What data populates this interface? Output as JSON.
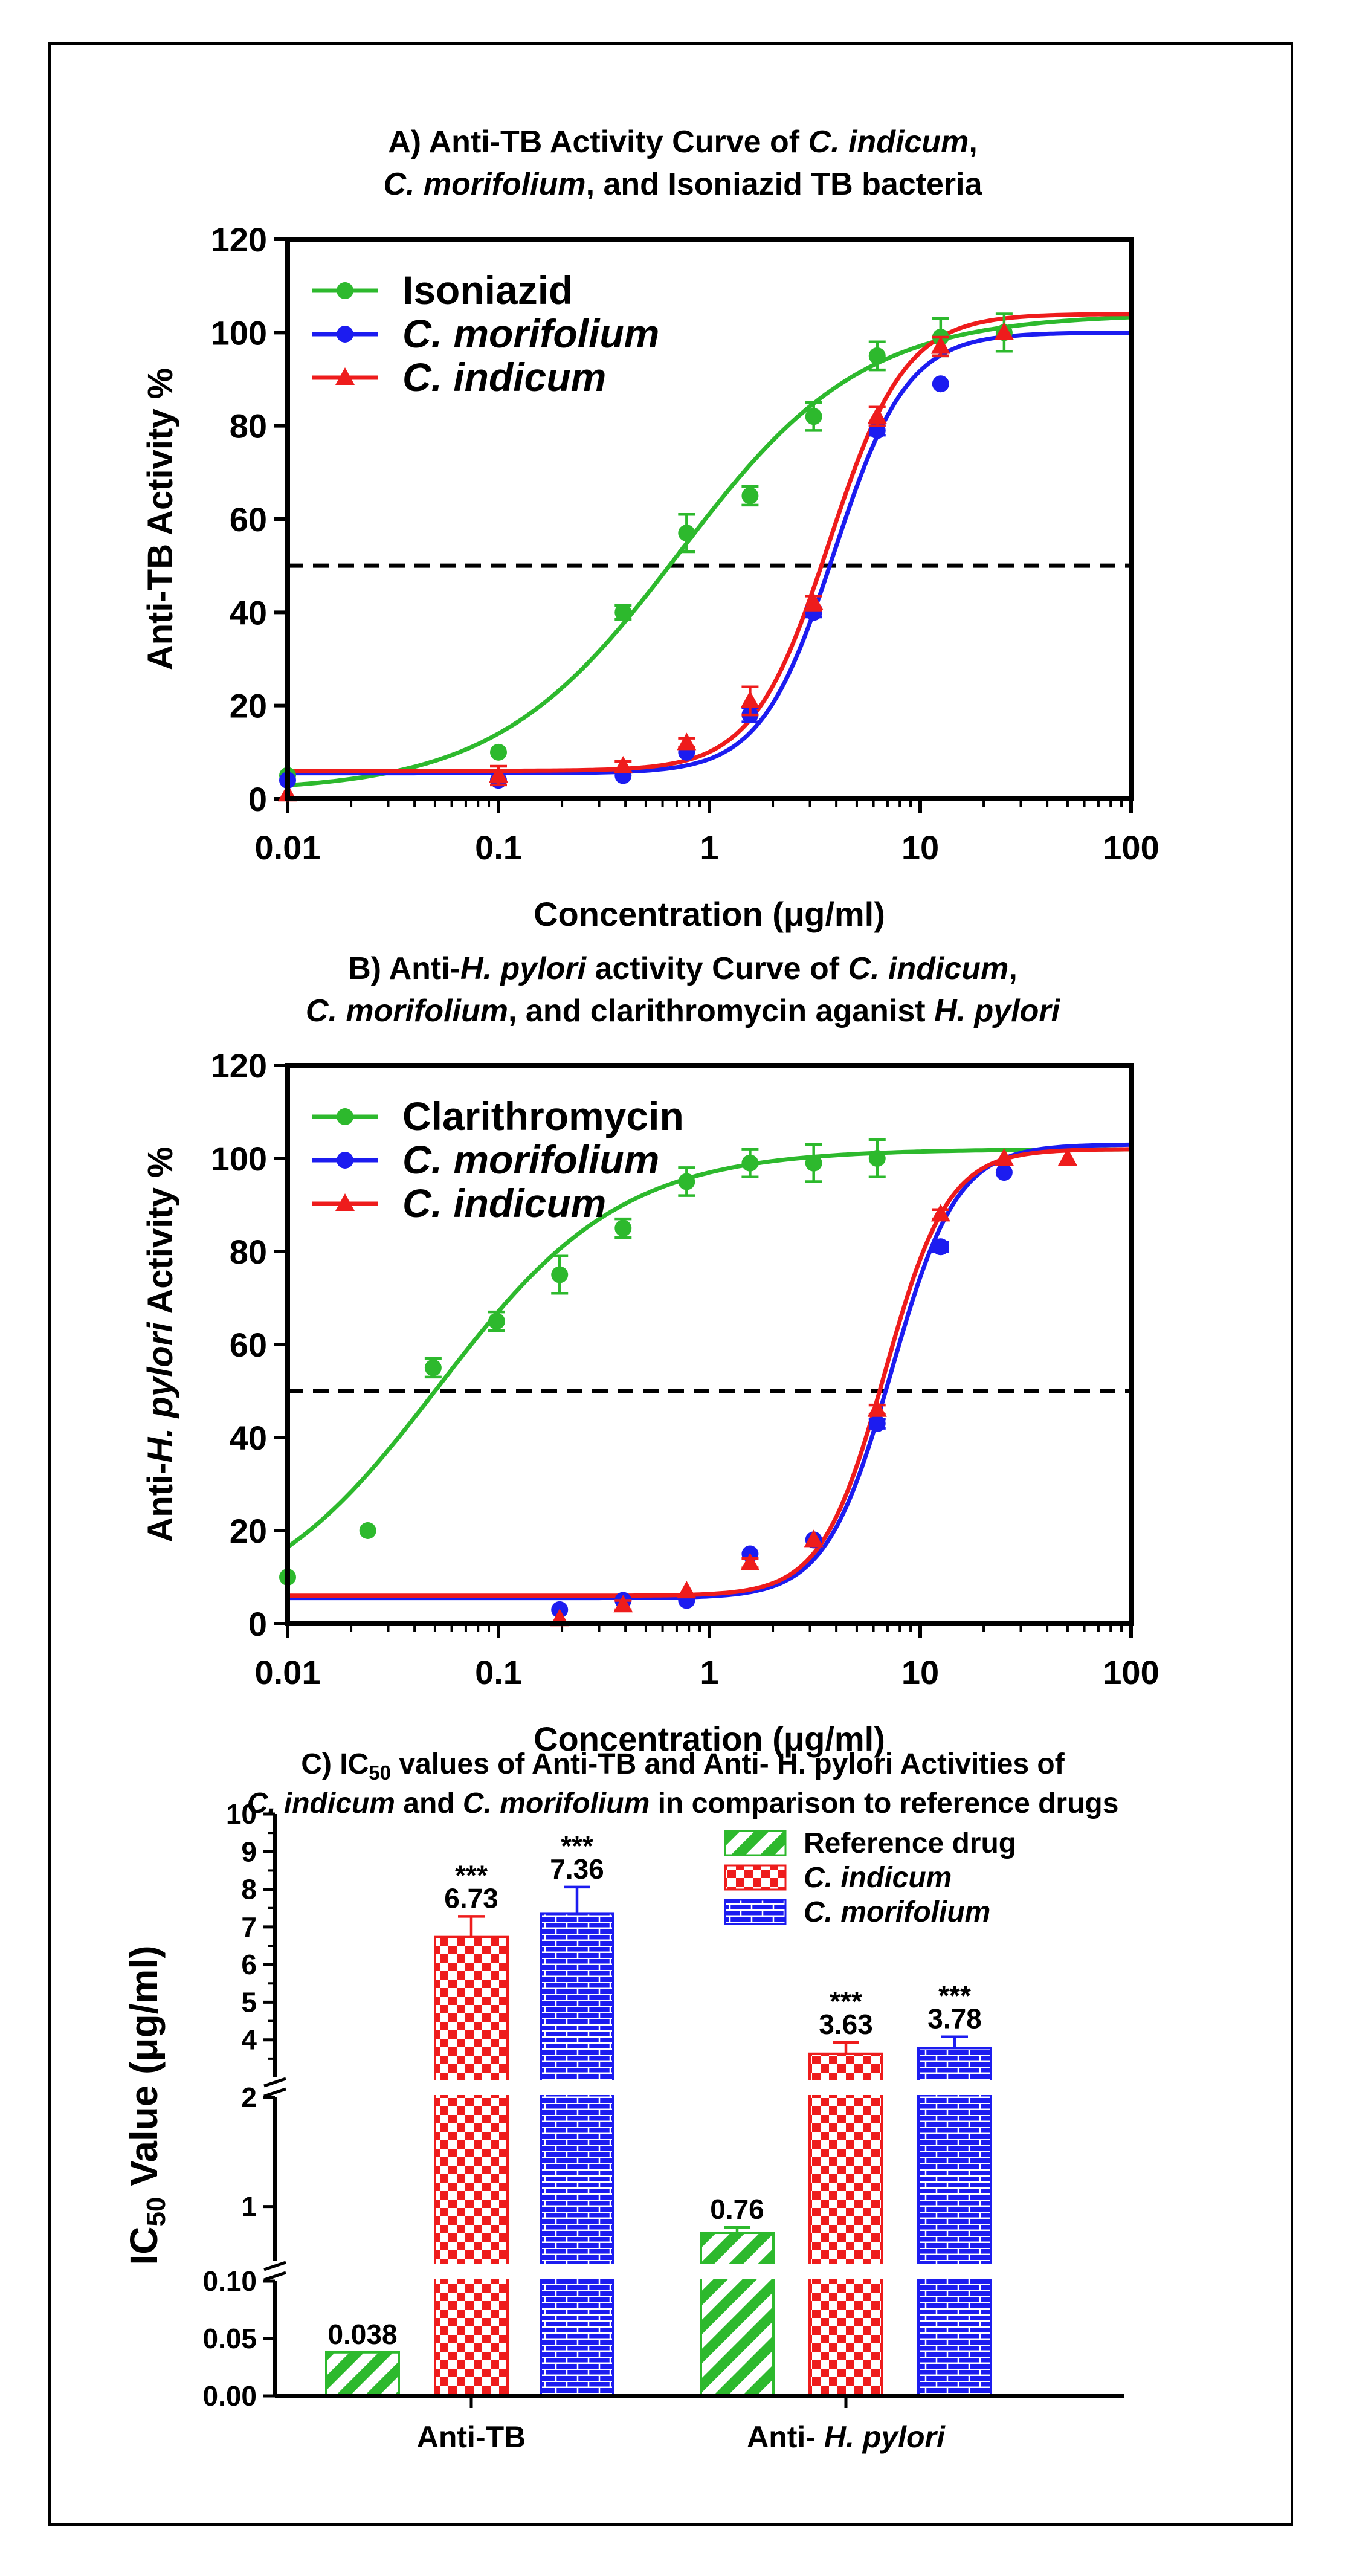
{
  "chart_data": [
    {
      "type": "scatter",
      "panel": "A",
      "title_parts": [
        {
          "text": "A) Anti-TB Activity Curve of ",
          "italic": false
        },
        {
          "text": "C. indicum",
          "italic": true
        },
        {
          "text": ",",
          "italic": false
        }
      ],
      "title_parts_2": [
        {
          "text": "C. morifolium",
          "italic": true
        },
        {
          "text": ", and Isoniazid TB bacteria",
          "italic": false
        }
      ],
      "xlabel": "Concentration (μg/ml)",
      "ylabel_parts": [
        {
          "text": "Anti-TB Activity %",
          "italic": false
        }
      ],
      "xscale": "log",
      "xlim": [
        0.01,
        100
      ],
      "ylim": [
        0,
        120
      ],
      "xticks": [
        "0.01",
        "0.1",
        "1",
        "10",
        "100"
      ],
      "xtick_values": [
        0.01,
        0.1,
        1,
        10,
        100
      ],
      "yticks": [
        0,
        20,
        40,
        60,
        80,
        100,
        120
      ],
      "reference_line": 50,
      "legend_position": "top-left",
      "series": [
        {
          "name": "Isoniazid",
          "color": "#2db92d",
          "marker": "circle",
          "italic": false,
          "x": [
            0.01,
            0.1,
            0.39,
            0.78,
            1.56,
            3.125,
            6.25,
            12.5,
            25
          ],
          "y": [
            5,
            10,
            40,
            57,
            65,
            82,
            95,
            99,
            100
          ],
          "err": [
            0,
            0,
            1.5,
            4,
            2,
            3,
            3,
            4,
            4
          ],
          "fit": {
            "bottom": 1.5,
            "top": 104,
            "ec50": 0.72,
            "hill": 1.0
          }
        },
        {
          "name": "C. morifolium",
          "color": "#1c1cf0",
          "marker": "circle",
          "italic": true,
          "x": [
            0.01,
            0.1,
            0.39,
            0.78,
            1.56,
            3.125,
            6.25,
            12.5
          ],
          "y": [
            4,
            4,
            5,
            10,
            18,
            40,
            79,
            89
          ],
          "err": [
            0,
            0,
            0,
            0,
            1.5,
            1,
            1,
            0
          ],
          "fit": {
            "bottom": 5.5,
            "top": 100,
            "ec50": 3.9,
            "hill": 2.5
          }
        },
        {
          "name": "C. indicum",
          "color": "#ee1c1c",
          "marker": "triangle",
          "italic": true,
          "x": [
            0.01,
            0.1,
            0.39,
            0.78,
            1.56,
            3.125,
            6.25,
            12.5,
            25
          ],
          "y": [
            1,
            5,
            7,
            12,
            21,
            42,
            82,
            97,
            100
          ],
          "err": [
            0,
            2,
            1,
            1,
            3,
            1.5,
            2,
            2,
            0
          ],
          "fit": {
            "bottom": 6,
            "top": 104,
            "ec50": 3.7,
            "hill": 2.4
          }
        }
      ]
    },
    {
      "type": "scatter",
      "panel": "B",
      "title_parts": [
        {
          "text": "B) Anti-",
          "italic": false
        },
        {
          "text": "H. pylori",
          "italic": true
        },
        {
          "text": " activity Curve of ",
          "italic": false
        },
        {
          "text": "C. indicum",
          "italic": true
        },
        {
          "text": ",",
          "italic": false
        }
      ],
      "title_parts_2": [
        {
          "text": "C. morifolium",
          "italic": true
        },
        {
          "text": ", and clarithromycin aganist ",
          "italic": false
        },
        {
          "text": "H. pylori",
          "italic": true
        }
      ],
      "xlabel": "Concentration (μg/ml)",
      "ylabel_parts": [
        {
          "text": "Anti-",
          "italic": false
        },
        {
          "text": "H. pylori",
          "italic": true
        },
        {
          "text": " Activity %",
          "italic": false
        }
      ],
      "xscale": "log",
      "xlim": [
        0.01,
        100
      ],
      "ylim": [
        0,
        120
      ],
      "xticks": [
        "0.01",
        "0.1",
        "1",
        "10",
        "100"
      ],
      "xtick_values": [
        0.01,
        0.1,
        1,
        10,
        100
      ],
      "yticks": [
        0,
        20,
        40,
        60,
        80,
        100,
        120
      ],
      "reference_line": 50,
      "legend_position": "top-left",
      "series": [
        {
          "name": "Clarithromycin",
          "color": "#2db92d",
          "marker": "circle",
          "italic": false,
          "x": [
            0.01,
            0.024,
            0.049,
            0.098,
            0.195,
            0.39,
            0.78,
            1.56,
            3.125,
            6.25
          ],
          "y": [
            10,
            20,
            55,
            65,
            75,
            85,
            95,
            99,
            99,
            100
          ],
          "err": [
            0,
            0,
            2,
            2,
            4,
            2,
            3,
            3,
            4,
            4
          ],
          "fit": {
            "bottom": 0,
            "top": 102,
            "ec50": 0.052,
            "hill": 1.0
          }
        },
        {
          "name": "C. morifolium",
          "color": "#1c1cf0",
          "marker": "circle",
          "italic": true,
          "x": [
            0.195,
            0.39,
            0.78,
            1.56,
            3.125,
            6.25,
            12.5,
            25
          ],
          "y": [
            3,
            5,
            5,
            15,
            18,
            43,
            81,
            97
          ],
          "err": [
            0,
            0,
            0,
            0,
            0,
            1,
            1,
            0
          ],
          "fit": {
            "bottom": 5.5,
            "top": 103,
            "ec50": 7.3,
            "hill": 2.8
          }
        },
        {
          "name": "C. indicum",
          "color": "#ee1c1c",
          "marker": "triangle",
          "italic": true,
          "x": [
            0.195,
            0.39,
            0.78,
            1.56,
            3.125,
            6.25,
            12.5,
            25,
            50
          ],
          "y": [
            1,
            4,
            7,
            13,
            18,
            46,
            88,
            100,
            100
          ],
          "err": [
            0,
            1,
            0,
            1,
            0,
            1,
            1,
            0,
            0
          ],
          "fit": {
            "bottom": 6,
            "top": 102,
            "ec50": 6.8,
            "hill": 2.9
          }
        }
      ]
    },
    {
      "type": "bar",
      "panel": "C",
      "title_parts": [
        {
          "text": "C) IC",
          "italic": false
        },
        {
          "text": "50",
          "italic": false,
          "sub": true
        },
        {
          "text": " values of Anti-TB and Anti- H. pylori Activities of",
          "italic": false
        }
      ],
      "title_parts_2": [
        {
          "text": "C. indicum",
          "italic": true
        },
        {
          "text": " and ",
          "italic": false
        },
        {
          "text": "C. morifolium",
          "italic": true
        },
        {
          "text": " in comparison to reference drugs",
          "italic": false
        }
      ],
      "ylabel_parts": [
        {
          "text": "IC",
          "italic": false
        },
        {
          "text": "50",
          "italic": false,
          "sub": true
        },
        {
          "text": " Value (μg/ml)",
          "italic": false
        }
      ],
      "y_axis": "broken",
      "y_segments": [
        {
          "range": [
            0,
            0.1
          ],
          "ticks": [
            "0.00",
            "0.05",
            "0.10"
          ]
        },
        {
          "range": [
            0.5,
            2
          ],
          "ticks": [
            "1",
            "2"
          ]
        },
        {
          "range": [
            3,
            10
          ],
          "ticks": [
            "4",
            "5",
            "6",
            "7",
            "8",
            "9",
            "10"
          ]
        }
      ],
      "categories": [
        {
          "label_parts": [
            {
              "text": "Anti-TB",
              "italic": false
            }
          ]
        },
        {
          "label_parts": [
            {
              "text": "Anti- ",
              "italic": false
            },
            {
              "text": "H. pylori",
              "italic": true
            }
          ]
        }
      ],
      "legend_position": "top-right",
      "series": [
        {
          "name": "Reference drug",
          "color": "#2db92d",
          "pattern": "diagonal",
          "italic": false,
          "values": [
            0.038,
            0.76
          ],
          "errors": [
            0,
            0.05
          ],
          "labels": [
            "0.038",
            "0.76"
          ],
          "sig": [
            "",
            ""
          ]
        },
        {
          "name": "C. indicum",
          "color": "#ee1c1c",
          "pattern": "checker",
          "italic": true,
          "values": [
            6.73,
            3.63
          ],
          "errors": [
            0.55,
            0.3
          ],
          "labels": [
            "6.73",
            "3.63"
          ],
          "sig": [
            "***",
            "***"
          ]
        },
        {
          "name": "C. morifolium",
          "color": "#1c1cf0",
          "pattern": "brick",
          "italic": true,
          "values": [
            7.36,
            3.78
          ],
          "errors": [
            0.7,
            0.3
          ],
          "labels": [
            "7.36",
            "3.78"
          ],
          "sig": [
            "***",
            "***"
          ]
        }
      ]
    }
  ]
}
